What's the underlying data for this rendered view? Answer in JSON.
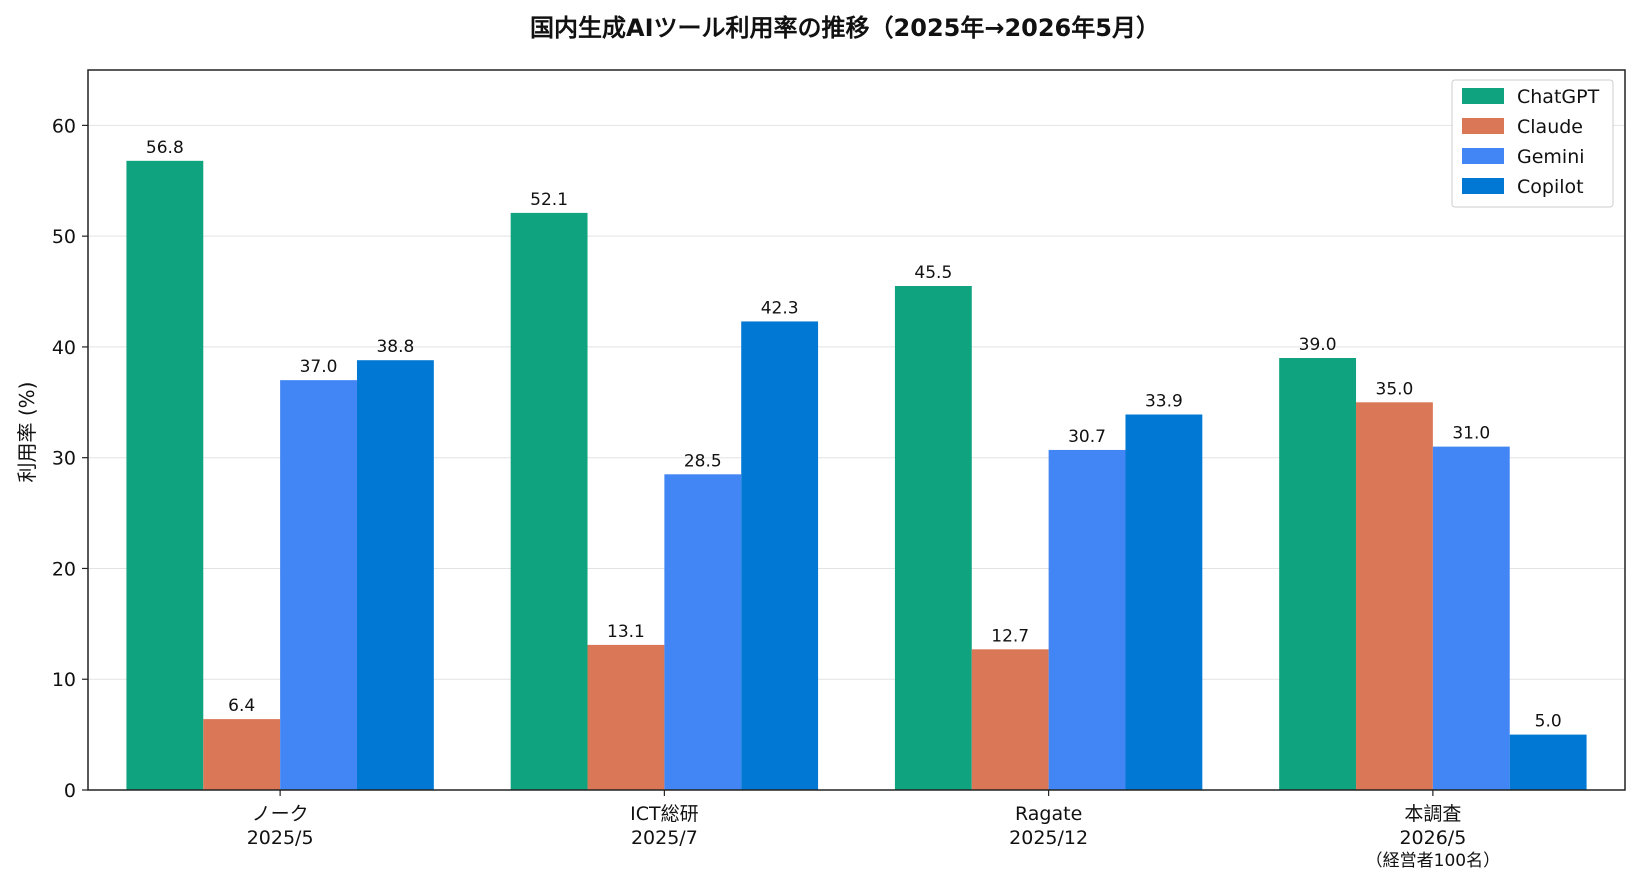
{
  "chart_data": {
    "type": "bar",
    "title": "国内生成AIツール利用率の推移（2025年→2026年5月）",
    "xlabel": "",
    "ylabel": "利用率 (%)",
    "ylim": [
      0,
      65
    ],
    "yticks": [
      0,
      10,
      20,
      30,
      40,
      50,
      60
    ],
    "grid": "horizontal",
    "legend_position": "top-right",
    "categories": [
      [
        "ノーク",
        "2025/5"
      ],
      [
        "ICT総研",
        "2025/7"
      ],
      [
        "Ragate",
        "2025/12"
      ],
      [
        "本調査",
        "2026/5",
        "（経営者100名）"
      ]
    ],
    "series": [
      {
        "name": "ChatGPT",
        "color": "#10a37f",
        "values": [
          56.8,
          52.1,
          45.5,
          39.0
        ]
      },
      {
        "name": "Claude",
        "color": "#d97757",
        "values": [
          6.4,
          13.1,
          12.7,
          35.0
        ]
      },
      {
        "name": "Gemini",
        "color": "#4285f4",
        "values": [
          37.0,
          28.5,
          30.7,
          31.0
        ]
      },
      {
        "name": "Copilot",
        "color": "#0078d4",
        "values": [
          38.8,
          42.3,
          33.9,
          5.0
        ]
      }
    ]
  }
}
